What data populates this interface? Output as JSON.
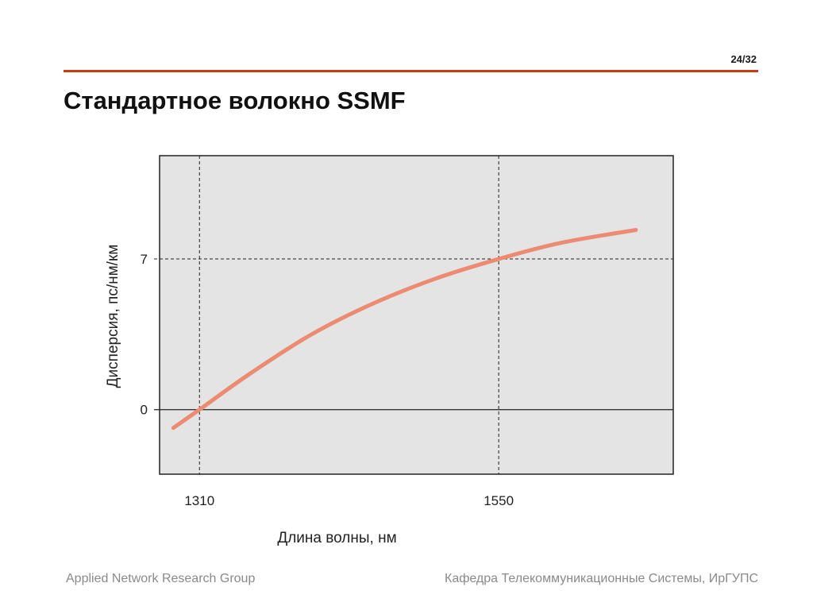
{
  "slide": {
    "page_number": "24/32",
    "title": "Стандартное волокно SSMF",
    "accent_color": "#cc3a12"
  },
  "footer": {
    "left": "Applied Network Research Group",
    "right": "Кафедра Телекоммуникационные Системы, ИрГУПС"
  },
  "chart_data": {
    "type": "line",
    "title": "",
    "xlabel": "Длина волны, нм",
    "ylabel": "Дисперсия, пс/нм/км",
    "xlim": [
      1278,
      1690
    ],
    "ylim": [
      -3,
      11.8
    ],
    "x_ticks": [
      1310,
      1550
    ],
    "x_tick_labels": [
      "1310",
      "1550"
    ],
    "y_ticks": [
      0,
      7
    ],
    "y_tick_labels": [
      "0",
      "7"
    ],
    "grid": false,
    "reference_lines": {
      "vertical_dashed": [
        1310,
        1550
      ],
      "horizontal_dashed": [
        7
      ],
      "horizontal_solid": [
        0
      ]
    },
    "plot_background": "#e4e4e4",
    "series": [
      {
        "color": "#ec8b72",
        "x": [
          1289,
          1310,
          1350,
          1400,
          1450,
          1500,
          1550,
          1600,
          1660
        ],
        "y": [
          -0.85,
          0.0,
          1.65,
          3.5,
          4.95,
          6.1,
          7.0,
          7.75,
          8.35
        ]
      }
    ]
  }
}
